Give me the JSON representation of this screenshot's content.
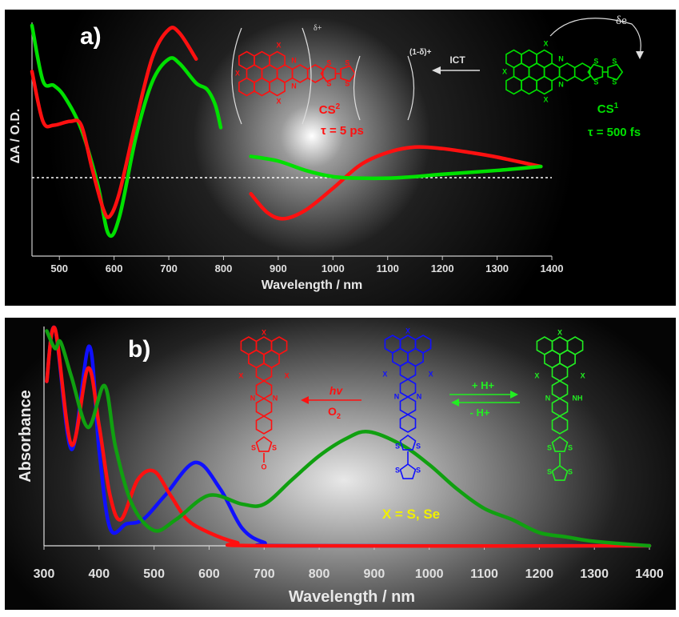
{
  "chart_data": [
    {
      "type": "line",
      "panel_label": "a)",
      "xlabel": "Wavelength / nm",
      "ylabel": "ΔA / O.D.",
      "xlim": [
        450,
        1400
      ],
      "ylim": [
        -1,
        2
      ],
      "xticks": [
        500,
        600,
        700,
        800,
        900,
        1000,
        1100,
        1200,
        1300,
        1400
      ],
      "zero_line": "dotted",
      "grid": false,
      "series": [
        {
          "color": "#00e000",
          "x": [
            450,
            470,
            490,
            510,
            540,
            570,
            590,
            610,
            640,
            670,
            700,
            720,
            750,
            770,
            785,
            795
          ],
          "y": [
            1.96,
            1.25,
            1.19,
            1.04,
            0.63,
            -0.08,
            -0.72,
            -0.49,
            0.53,
            1.24,
            1.53,
            1.47,
            1.22,
            1.14,
            0.94,
            0.65
          ]
        },
        {
          "color": "#ff1010",
          "x": [
            450,
            470,
            490,
            520,
            540,
            560,
            580,
            592,
            610,
            640,
            670,
            700,
            720,
            750
          ],
          "y": [
            1.37,
            0.73,
            0.68,
            0.73,
            0.68,
            0.12,
            -0.39,
            -0.49,
            -0.18,
            0.73,
            1.55,
            1.91,
            1.86,
            1.53
          ]
        },
        {
          "color": "#ff1010",
          "x": [
            850,
            880,
            910,
            950,
            1000,
            1050,
            1100,
            1150,
            1200,
            1250,
            1300,
            1380
          ],
          "y": [
            -0.2,
            -0.44,
            -0.52,
            -0.41,
            -0.13,
            0.17,
            0.33,
            0.4,
            0.38,
            0.33,
            0.27,
            0.15
          ]
        },
        {
          "color": "#00e000",
          "x": [
            850,
            900,
            950,
            1000,
            1050,
            1100,
            1150,
            1200,
            1300,
            1380
          ],
          "y": [
            0.28,
            0.22,
            0.1,
            0.02,
            0,
            0,
            0.02,
            0.05,
            0.1,
            0.15
          ]
        }
      ],
      "annotations": {
        "delta_plus": "δ+",
        "one_minus_delta": "(1-δ)+",
        "ict": "ICT",
        "delta_e": "δe",
        "cs2": "CS",
        "cs2_sup": "2",
        "tau_cs2": "τ = 5 ps",
        "cs1": "CS",
        "cs1_sup": "1",
        "tau_cs1": "τ = 500 fs",
        "atom_x": "X",
        "atom_n": "N",
        "atom_s": "S"
      }
    },
    {
      "type": "line",
      "panel_label": "b)",
      "xlabel": "Wavelength / nm",
      "ylabel": "Absorbance",
      "xlim": [
        300,
        1400
      ],
      "ylim": [
        0,
        1
      ],
      "xticks": [
        300,
        400,
        500,
        600,
        700,
        800,
        900,
        1000,
        1100,
        1200,
        1300,
        1400
      ],
      "grid": false,
      "series": [
        {
          "color": "#1010ff",
          "x": [
            305,
            320,
            350,
            382,
            400,
            420,
            450,
            480,
            520,
            575,
            620,
            660,
            700,
            750,
            1400
          ],
          "y": [
            0.75,
            0.99,
            0.44,
            0.91,
            0.44,
            0.08,
            0.1,
            0.12,
            0.23,
            0.38,
            0.26,
            0.08,
            0.015,
            0,
            0
          ]
        },
        {
          "color": "#ff1010",
          "x": [
            305,
            320,
            350,
            380,
            400,
            420,
            440,
            470,
            500,
            530,
            560,
            600,
            650,
            700,
            1400
          ],
          "y": [
            0.75,
            0.99,
            0.46,
            0.81,
            0.55,
            0.23,
            0.12,
            0.3,
            0.34,
            0.23,
            0.12,
            0.06,
            0.015,
            0,
            0
          ]
        },
        {
          "color": "#10a010",
          "x": [
            305,
            320,
            330,
            350,
            380,
            410,
            430,
            460,
            500,
            540,
            600,
            660,
            700,
            750,
            800,
            850,
            890,
            950,
            1000,
            1050,
            1100,
            1150,
            1200,
            1250,
            1300,
            1400
          ],
          "y": [
            0.98,
            0.9,
            0.93,
            0.77,
            0.54,
            0.73,
            0.45,
            0.19,
            0.07,
            0.12,
            0.23,
            0.19,
            0.19,
            0.3,
            0.41,
            0.49,
            0.52,
            0.46,
            0.37,
            0.26,
            0.17,
            0.12,
            0.06,
            0.04,
            0.02,
            0
          ]
        }
      ],
      "annotations": {
        "hv": "hv",
        "o2": "O",
        "o2_sub": "2",
        "plus_h": "+ H+",
        "minus_h": "- H+",
        "x_def": "X = S, Se",
        "atom_x": "X",
        "atom_n": "N",
        "atom_nh": "NH",
        "atom_s": "S",
        "atom_o": "O"
      }
    }
  ]
}
